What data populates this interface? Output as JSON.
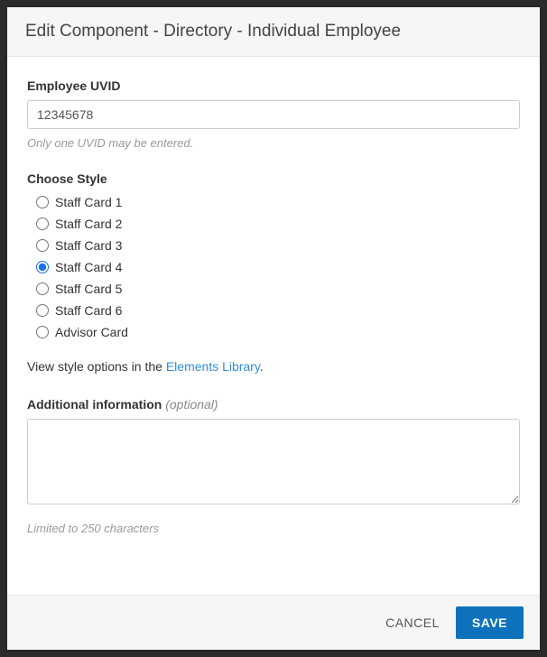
{
  "header": {
    "title": "Edit Component - Directory - Individual Employee"
  },
  "uvid": {
    "label": "Employee UVID",
    "value": "12345678",
    "help": "Only one UVID may be entered."
  },
  "style": {
    "label": "Choose Style",
    "options": [
      {
        "label": "Staff Card 1",
        "checked": false
      },
      {
        "label": "Staff Card 2",
        "checked": false
      },
      {
        "label": "Staff Card 3",
        "checked": false
      },
      {
        "label": "Staff Card 4",
        "checked": true
      },
      {
        "label": "Staff Card 5",
        "checked": false
      },
      {
        "label": "Staff Card 6",
        "checked": false
      },
      {
        "label": "Advisor Card",
        "checked": false
      }
    ],
    "link_prefix": "View style options in the ",
    "link_text": "Elements Library",
    "link_suffix": "."
  },
  "additional": {
    "label_strong": "Additional information",
    "label_optional": "(optional)",
    "value": "",
    "char_limit": "Limited to 250 characters"
  },
  "footer": {
    "cancel_label": "CANCEL",
    "save_label": "SAVE"
  }
}
